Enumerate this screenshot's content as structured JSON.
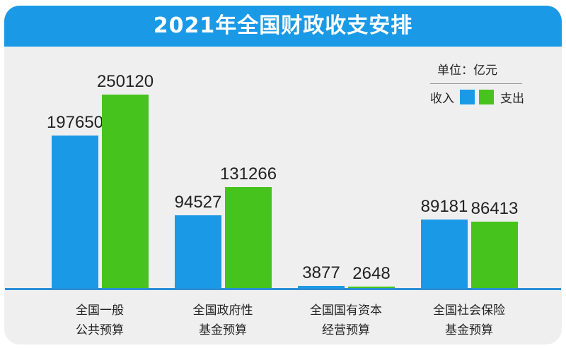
{
  "title": "2021年全国财政收支安排",
  "unit_label": "单位：亿元",
  "legend": {
    "income": "收入",
    "expense": "支出"
  },
  "colors": {
    "income": "#1a9ae6",
    "expense": "#46c31c",
    "header": "#1a9ae6",
    "axis": "#2b8fd6",
    "background": "#efefef"
  },
  "categories": [
    {
      "line1": "全国一般",
      "line2": "公共预算",
      "income": "197650",
      "expense": "250120"
    },
    {
      "line1": "全国政府性",
      "line2": "基金预算",
      "income": "94527",
      "expense": "131266"
    },
    {
      "line1": "全国国有资本",
      "line2": "经营预算",
      "income": "3877",
      "expense": "2648"
    },
    {
      "line1": "全国社会保险",
      "line2": "基金预算",
      "income": "89181",
      "expense": "86413"
    }
  ],
  "chart_data": {
    "type": "bar",
    "title": "2021年全国财政收支安排",
    "xlabel": "",
    "ylabel": "单位：亿元",
    "categories": [
      "全国一般公共预算",
      "全国政府性基金预算",
      "全国国有资本经营预算",
      "全国社会保险基金预算"
    ],
    "series": [
      {
        "name": "收入",
        "color": "#1a9ae6",
        "values": [
          197650,
          94527,
          3877,
          89181
        ]
      },
      {
        "name": "支出",
        "color": "#46c31c",
        "values": [
          250120,
          131266,
          2648,
          86413
        ]
      }
    ],
    "legend_position": "top-right",
    "grid": false,
    "ylim": [
      0,
      250120
    ]
  }
}
